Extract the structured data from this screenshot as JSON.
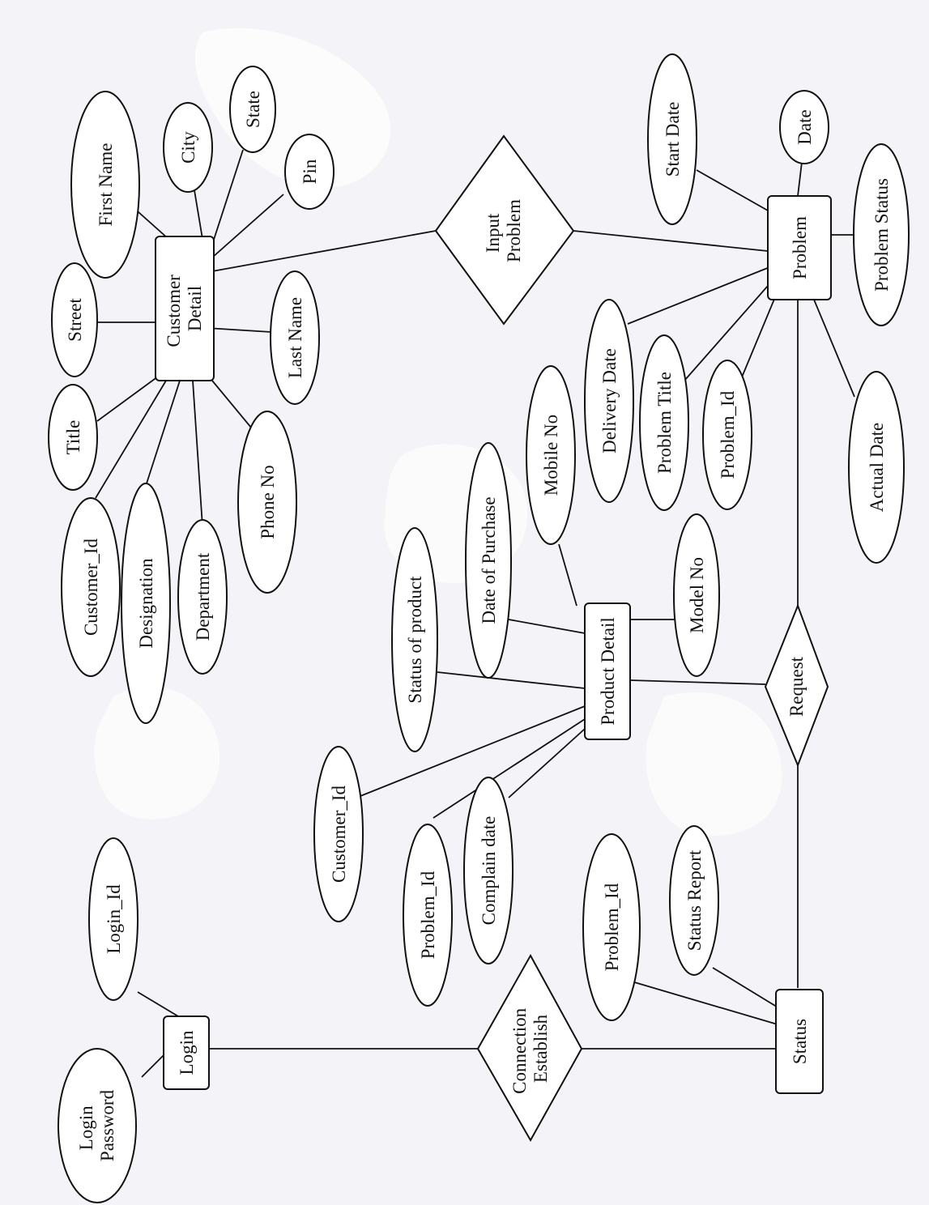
{
  "colors": {
    "paper": "#f4f4f8",
    "ink": "#111111",
    "shape_fill": "#ffffff"
  },
  "diagram": {
    "type": "er-diagram",
    "entities": {
      "customer_detail": [
        "Customer",
        "Detail"
      ],
      "problem": "Problem",
      "product_detail": "Product Detail",
      "login": "Login",
      "status": "Status"
    },
    "relationships": {
      "input_problem": [
        "Input",
        "Problem"
      ],
      "request": "Request",
      "connection_establish": [
        "Connection",
        "Establish"
      ]
    },
    "attributes": {
      "customer_first_name": "First Name",
      "customer_city": "City",
      "customer_state": "State",
      "customer_pin": "Pin",
      "customer_street": "Street",
      "customer_last_name": "Last Name",
      "customer_title": "Title",
      "customer_phone_no": "Phone No",
      "customer_customer_id": "Customer_Id",
      "customer_designation": "Designation",
      "customer_department": "Department",
      "problem_start_date": "Start Date",
      "problem_date": "Date",
      "problem_status": "Problem Status",
      "problem_actual_date": "Actual Date",
      "problem_delivery_date": "Delivery Date",
      "problem_title": "Problem Title",
      "problem_problem_id": "Problem_Id",
      "product_mobile_no": "Mobile No",
      "product_date_of_purchase": "Date of Purchase",
      "product_status_of_product": "Status of product",
      "product_model_no": "Model No",
      "product_customer_id": "Customer_Id",
      "product_problem_id": "Problem_Id",
      "product_complain_date": "Complain date",
      "login_login_id": "Login_Id",
      "login_password": [
        "Login",
        "Password"
      ],
      "status_problem_id": "Problem_Id",
      "status_report": "Status Report"
    }
  }
}
